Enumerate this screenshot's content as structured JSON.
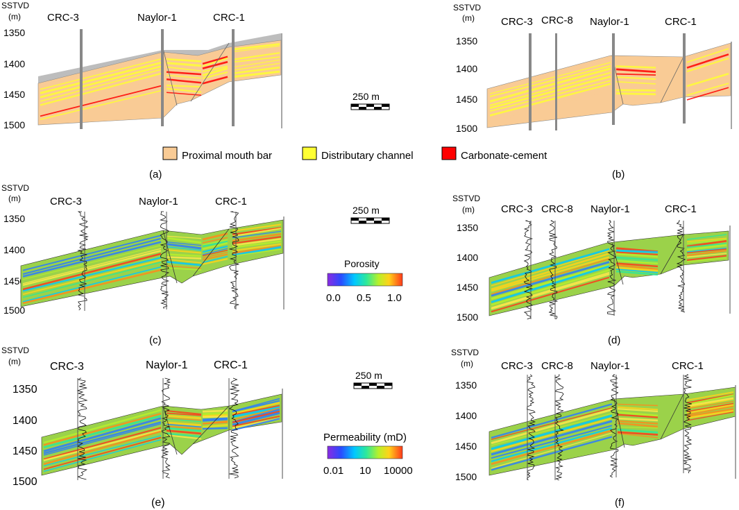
{
  "depth_label": {
    "line1": "SSTVD",
    "line2": "(m)"
  },
  "depth_ticks": [
    "1350",
    "1400",
    "1450",
    "1500"
  ],
  "panels": [
    {
      "id": "a",
      "letter": "(a)",
      "wells": [
        "CRC-3",
        "Naylor-1",
        "CRC-1"
      ],
      "property": "facies"
    },
    {
      "id": "b",
      "letter": "(b)",
      "wells": [
        "CRC-3",
        "CRC-8",
        "Naylor-1",
        "CRC-1"
      ],
      "property": "facies"
    },
    {
      "id": "c",
      "letter": "(c)",
      "wells": [
        "CRC-3",
        "Naylor-1",
        "CRC-1"
      ],
      "property": "porosity"
    },
    {
      "id": "d",
      "letter": "(d)",
      "wells": [
        "CRC-3",
        "CRC-8",
        "Naylor-1",
        "CRC-1"
      ],
      "property": "porosity"
    },
    {
      "id": "e",
      "letter": "(e)",
      "wells": [
        "CRC-3",
        "Naylor-1",
        "CRC-1"
      ],
      "property": "permeability"
    },
    {
      "id": "f",
      "letter": "(f)",
      "wells": [
        "CRC-3",
        "CRC-8",
        "Naylor-1",
        "CRC-1"
      ],
      "property": "permeability"
    }
  ],
  "scale_bar": {
    "label": "250 m"
  },
  "facies_legend": [
    {
      "label": "Proximal mouth bar",
      "color": "#f9cb95"
    },
    {
      "label": "Distributary channel",
      "color": "#ffff33"
    },
    {
      "label": "Carbonate-cement",
      "color": "#ff0000"
    }
  ],
  "porosity_legend": {
    "title": "Porosity",
    "ticks": [
      "0.0",
      "0.5",
      "1.0"
    ]
  },
  "permeability_legend": {
    "title": "Permeability (mD)",
    "ticks": [
      "0.01",
      "10",
      "10000"
    ]
  },
  "colors": {
    "facies_base": "#f9cb95",
    "channel": "#ffff33",
    "cement": "#ff0000",
    "overburden": "#bdbdbd",
    "property_base": "#9bd24a"
  }
}
